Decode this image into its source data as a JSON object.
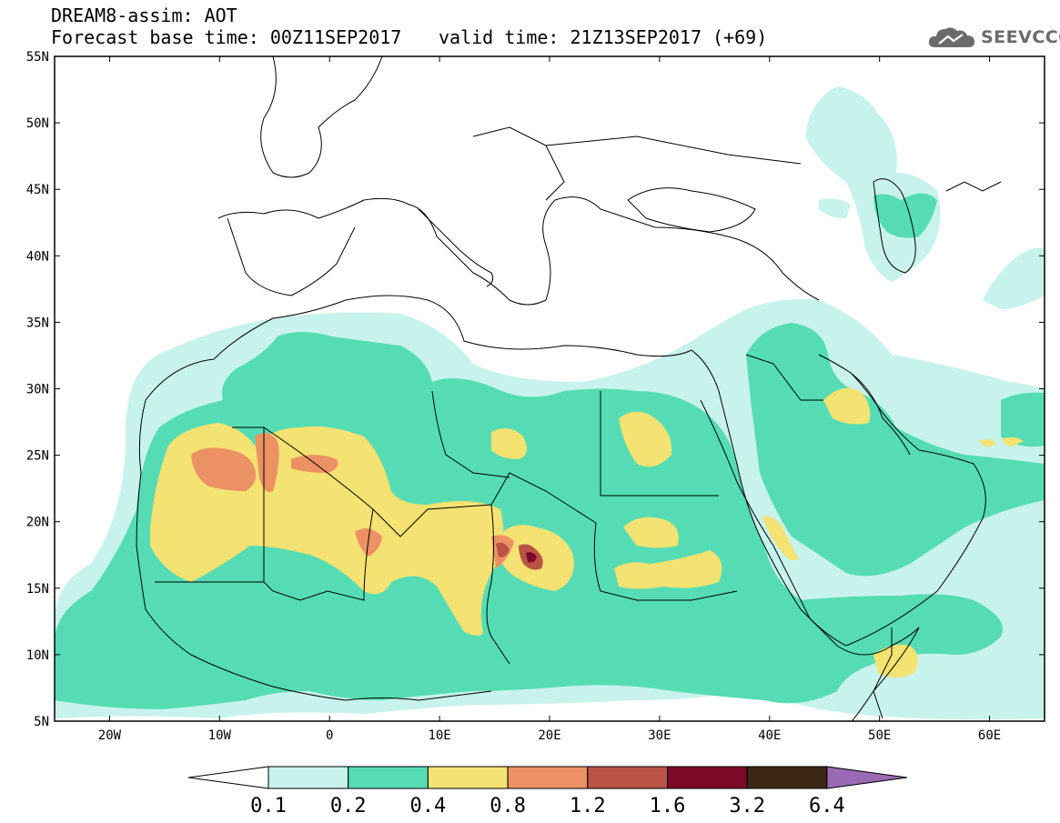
{
  "header": {
    "line1": "DREAM8-assim: AOT",
    "line2": "Forecast base time: 00Z11SEP2017",
    "line3": "valid time: 21Z13SEP2017 (+69)"
  },
  "logo": {
    "text": "SEEVCCC",
    "icon": "cloud-icon"
  },
  "map": {
    "lon_range": [
      -25,
      65
    ],
    "lat_range": [
      5,
      55
    ],
    "lat_ticks": [
      "5N",
      "10N",
      "15N",
      "20N",
      "25N",
      "30N",
      "35N",
      "40N",
      "45N",
      "50N",
      "55N"
    ],
    "lon_ticks": [
      "20W",
      "10W",
      "0",
      "10E",
      "20E",
      "30E",
      "40E",
      "50E",
      "60E"
    ],
    "background": "#ffffff",
    "border_color": "#000000"
  },
  "colorbar": {
    "thresholds": [
      "0.1",
      "0.2",
      "0.4",
      "0.8",
      "1.2",
      "1.6",
      "3.2",
      "6.4"
    ],
    "colors": [
      "#c8f2ec",
      "#55dcb4",
      "#f4e272",
      "#ec9164",
      "#b95446",
      "#7c0a26",
      "#3d2613",
      "#9a6bb4"
    ]
  }
}
